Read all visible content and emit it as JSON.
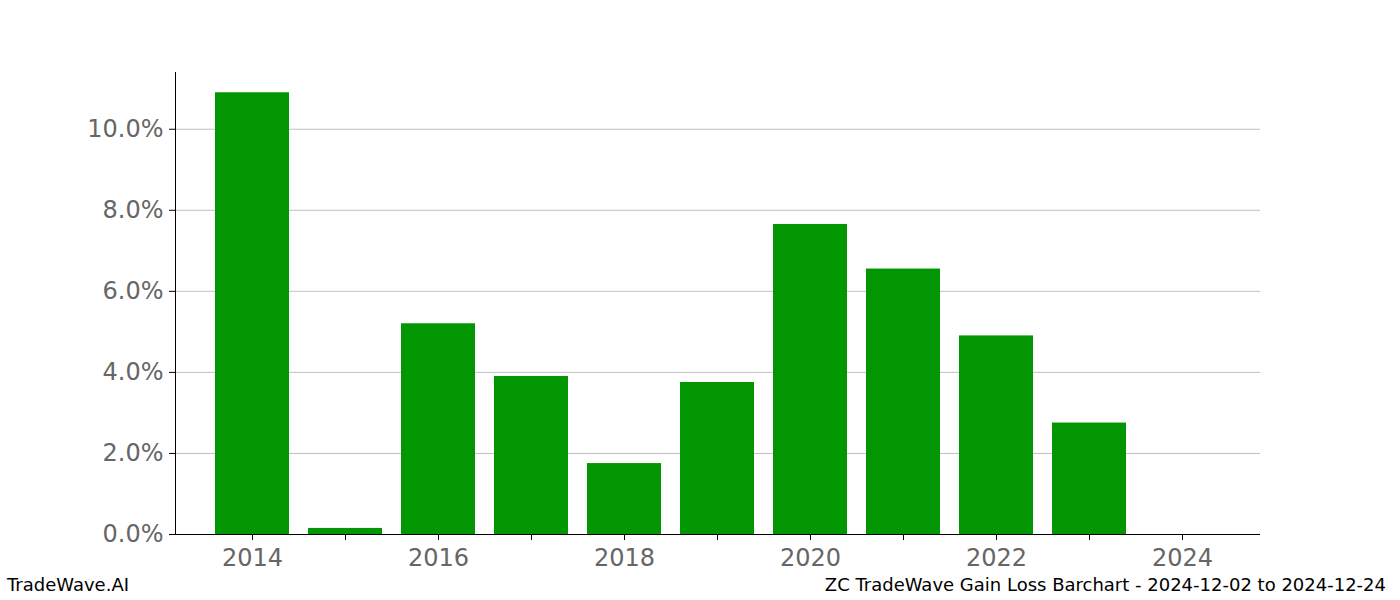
{
  "chart_data": {
    "type": "bar",
    "footer_left": "TradeWave.AI",
    "footer_right": "ZC TradeWave Gain Loss Barchart - 2024-12-02 to 2024-12-24",
    "categories": [
      "2014",
      null,
      "2016",
      null,
      "2018",
      null,
      "2020",
      null,
      "2022",
      null,
      "2024"
    ],
    "values": [
      10.9,
      0.15,
      5.2,
      3.9,
      1.75,
      3.75,
      7.65,
      6.55,
      4.9,
      2.75,
      0
    ],
    "color": "#029602",
    "ylim": [
      0,
      11.4
    ],
    "yticks": [
      {
        "value": 0,
        "label": "0.0%"
      },
      {
        "value": 2,
        "label": "2.0%"
      },
      {
        "value": 4,
        "label": "4.0%"
      },
      {
        "value": 6,
        "label": "6.0%"
      },
      {
        "value": 8,
        "label": "8.0%"
      },
      {
        "value": 10,
        "label": "10.0%"
      }
    ],
    "grid": true
  }
}
